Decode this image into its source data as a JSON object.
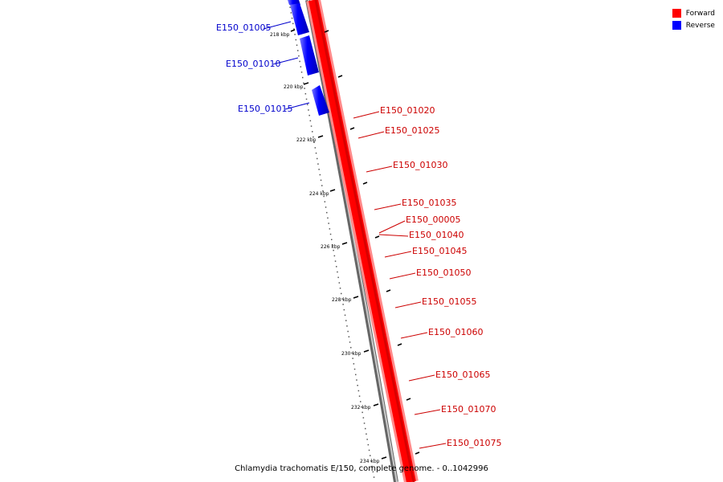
{
  "legend": {
    "forward": {
      "label": "Forward",
      "color": "#ff0000"
    },
    "reverse": {
      "label": "Reverse",
      "color": "#0000ff"
    }
  },
  "caption": "Chlamydia trachomatis E/150, complete genome. - 0..1042996",
  "scale": {
    "unit": "kbp",
    "major_ticks": [
      "218 kbp",
      "220 kbp",
      "222 kbp",
      "224 kbp",
      "226 kbp",
      "228 kbp",
      "230 kbp",
      "232 kbp",
      "234 kbp"
    ]
  },
  "genes": {
    "reverse": [
      "E150_01005",
      "E150_01010",
      "E150_01015"
    ],
    "forward": [
      "E150_01020",
      "E150_01025",
      "E150_01030",
      "E150_01035",
      "E150_00005",
      "E150_01040",
      "E150_01045",
      "E150_01050",
      "E150_01055",
      "E150_01060",
      "E150_01065",
      "E150_01070",
      "E150_01075"
    ]
  }
}
